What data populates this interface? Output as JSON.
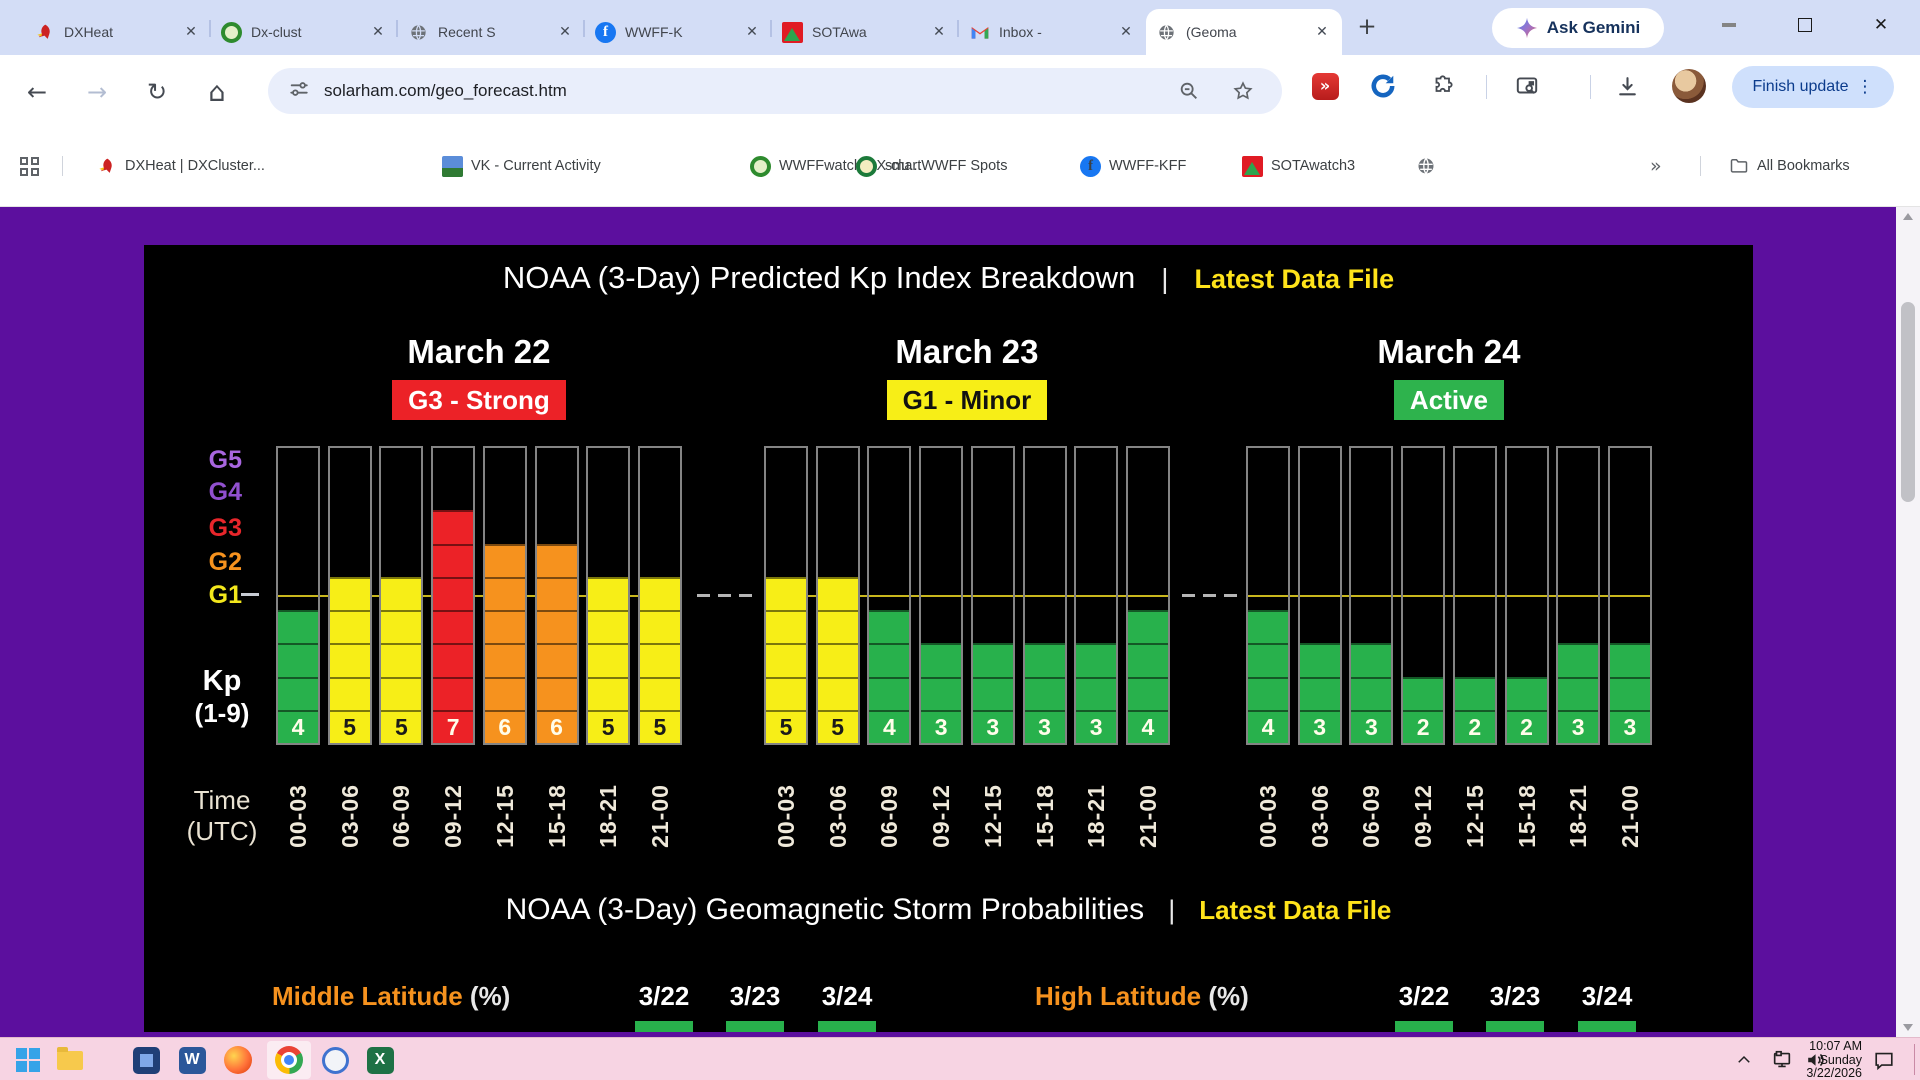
{
  "browser": {
    "tabs": [
      {
        "title": "DXHeat"
      },
      {
        "title": "Dx-clust"
      },
      {
        "title": "Recent S"
      },
      {
        "title": "WWFF-K"
      },
      {
        "title": "SOTAwa"
      },
      {
        "title": "Inbox -"
      },
      {
        "title": "(Geoma"
      }
    ],
    "new_tab_glyph": "+",
    "ask_gemini_label": "Ask Gemini",
    "icons": {
      "back": "←",
      "forward": "→",
      "reload": "↻",
      "home": "⌂",
      "close": "✕",
      "overflow": "»",
      "kebab": "⋮",
      "fast_forward": "»"
    },
    "url": "solarham.com/geo_forecast.htm",
    "finish_update_label": "Finish update",
    "bookmarks": {
      "items": [
        {
          "label": "DXHeat | DXCluster..."
        },
        {
          "label": "VK - Current Activity"
        },
        {
          "label": "WWFFwatch DX-clu..."
        },
        {
          "label": "smartWWFF Spots"
        },
        {
          "label": "WWFF-KFF"
        },
        {
          "label": "SOTAwatch3"
        }
      ],
      "all_bookmarks_label": "All Bookmarks"
    }
  },
  "chart_data": {
    "type": "bar",
    "title": "NOAA (3-Day) Predicted Kp Index Breakdown",
    "divider": "|",
    "link_label": "Latest Data File",
    "ylabel": "Kp (1-9)",
    "kp_label": "Kp",
    "kp_range": "(1-9)",
    "xlabel_line1": "Time",
    "xlabel_line2": "(UTC)",
    "ylim": [
      0,
      9
    ],
    "g_scale": [
      "G5",
      "G4",
      "G3",
      "G2",
      "G1"
    ],
    "g_colors": [
      "#a866e0",
      "#9150cf",
      "#e8262b",
      "#f6921e",
      "#f3e71c"
    ],
    "time_slots": [
      "00-03",
      "03-06",
      "06-09",
      "09-12",
      "12-15",
      "15-18",
      "18-21",
      "21-00"
    ],
    "days": [
      {
        "label": "March 22",
        "condition": "G3 - Strong",
        "condition_bg": "#ec2227",
        "condition_fg": "#ffffff",
        "values": [
          4,
          5,
          5,
          7,
          6,
          6,
          5,
          5
        ]
      },
      {
        "label": "March 23",
        "condition": "G1 - Minor",
        "condition_bg": "#f7ee17",
        "condition_fg": "#111111",
        "values": [
          5,
          5,
          4,
          3,
          3,
          3,
          3,
          4
        ]
      },
      {
        "label": "March 24",
        "condition": "Active",
        "condition_bg": "#2eb34d",
        "condition_fg": "#ffffff",
        "values": [
          4,
          3,
          3,
          2,
          2,
          2,
          3,
          3
        ]
      }
    ],
    "colors": {
      "green": "#28b14c",
      "yellow": "#f7ee17",
      "orange": "#f6921e",
      "red": "#ec2227",
      "g1_line": "#c9b71d"
    },
    "legend_note": "grid off"
  },
  "prob_section": {
    "title": "NOAA (3-Day) Geomagnetic Storm Probabilities",
    "divider": "|",
    "link_label": "Latest Data File",
    "groups": [
      {
        "label": "Middle Latitude",
        "unit": "(%)",
        "dates": [
          "3/22",
          "3/23",
          "3/24"
        ]
      },
      {
        "label": "High Latitude",
        "unit": "(%)",
        "dates": [
          "3/22",
          "3/23",
          "3/24"
        ]
      }
    ]
  },
  "taskbar": {
    "time": "10:07 AM",
    "day": "Sunday",
    "date": "3/22/2026"
  },
  "colors": {
    "page_background": "#5c0f9e",
    "chart_background": "#000000",
    "link_yellow": "#ffe31a",
    "taskbar_pink": "#f7d4e3"
  }
}
